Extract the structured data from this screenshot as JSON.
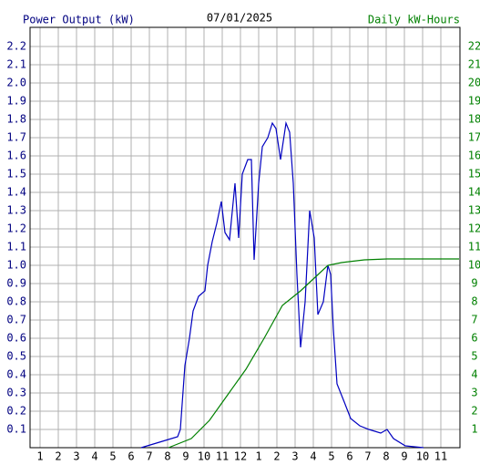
{
  "chart_data": {
    "type": "line",
    "title": "07/01/2025",
    "y_label": "Power Output (kW)",
    "y2_label": "Daily kW-Hours",
    "grid": true,
    "xlim": [
      0.45,
      24.05
    ],
    "xticks": [
      1,
      2,
      3,
      4,
      5,
      6,
      7,
      8,
      9,
      10,
      11,
      12,
      {
        "value": 13,
        "label": "1"
      },
      {
        "value": 14,
        "label": "2"
      },
      {
        "value": 15,
        "label": "3"
      },
      {
        "value": 16,
        "label": "4"
      },
      {
        "value": 17,
        "label": "5"
      },
      {
        "value": 18,
        "label": "6"
      },
      {
        "value": 19,
        "label": "7"
      },
      {
        "value": 20,
        "label": "8"
      },
      {
        "value": 21,
        "label": "9"
      },
      {
        "value": 22,
        "label": "10"
      },
      {
        "value": 23,
        "label": "11"
      }
    ],
    "ylim": [
      0,
      2.3
    ],
    "yticks": [
      0.1,
      0.2,
      0.3,
      0.4,
      0.5,
      0.6,
      0.7,
      0.8,
      0.9,
      {
        "value": 1.0,
        "label": "1.0"
      },
      1.1,
      1.2,
      1.3,
      1.4,
      1.5,
      1.6,
      1.7,
      1.8,
      1.9,
      {
        "value": 2.0,
        "label": "2.0"
      },
      2.1,
      2.2
    ],
    "y2lim": [
      0,
      23
    ],
    "y2ticks": [
      1,
      2,
      3,
      4,
      5,
      6,
      7,
      8,
      9,
      10,
      11,
      12,
      13,
      14,
      15,
      16,
      17,
      18,
      19,
      20,
      21,
      22
    ],
    "series": [
      {
        "name": "Power Output (kW)",
        "color": "#0000c0",
        "x": [
          6.55,
          7.55,
          8.55,
          8.7,
          8.95,
          9.2,
          9.4,
          9.7,
          10.05,
          10.2,
          10.45,
          10.7,
          10.95,
          11.15,
          11.4,
          11.7,
          11.9,
          12.1,
          12.4,
          12.6,
          12.75,
          13.0,
          13.2,
          13.5,
          13.75,
          13.95,
          14.2,
          14.5,
          14.7,
          14.9,
          15.1,
          15.3,
          15.55,
          15.8,
          16.05,
          16.25,
          16.55,
          16.8,
          16.95,
          17.1,
          17.3,
          17.7,
          18.05,
          18.55,
          19.05,
          19.7,
          20.05,
          20.4,
          21.05,
          22.05
        ],
        "values": [
          0,
          0.03,
          0.06,
          0.1,
          0.45,
          0.6,
          0.75,
          0.83,
          0.86,
          1.0,
          1.13,
          1.23,
          1.35,
          1.18,
          1.14,
          1.45,
          1.15,
          1.5,
          1.58,
          1.58,
          1.03,
          1.45,
          1.65,
          1.7,
          1.78,
          1.75,
          1.58,
          1.78,
          1.73,
          1.45,
          0.95,
          0.55,
          0.8,
          1.3,
          1.15,
          0.73,
          0.8,
          1.0,
          0.95,
          0.65,
          0.35,
          0.25,
          0.16,
          0.12,
          0.1,
          0.08,
          0.1,
          0.05,
          0.01,
          0
        ]
      },
      {
        "name": "Daily kW-Hours",
        "color": "#008000",
        "axis": "y2",
        "x": [
          8.05,
          9.3,
          10.3,
          11.3,
          12.3,
          13.3,
          14.3,
          15.3,
          16.05,
          16.8,
          17.55,
          18.8,
          20.05,
          24.0
        ],
        "values": [
          0,
          0.5,
          1.5,
          2.9,
          4.3,
          6.0,
          7.8,
          8.6,
          9.3,
          10.0,
          10.15,
          10.3,
          10.35,
          10.35
        ]
      }
    ]
  }
}
